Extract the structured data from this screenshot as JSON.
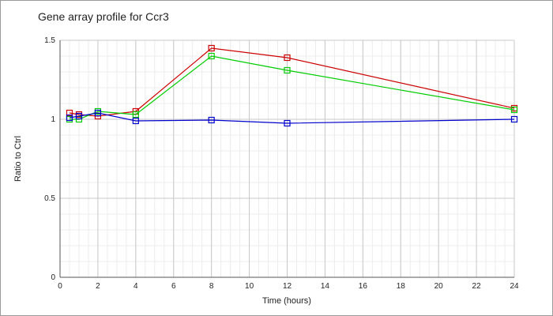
{
  "chart_data": {
    "type": "line",
    "title": "Gene array profile for Ccr3",
    "xlabel": "Time (hours)",
    "ylabel": "Ratio to Ctrl",
    "xlim": [
      0,
      24
    ],
    "ylim": [
      0,
      1.5
    ],
    "x_ticks": [
      0,
      2,
      4,
      6,
      8,
      10,
      12,
      14,
      16,
      18,
      20,
      22,
      24
    ],
    "y_ticks": [
      0,
      0.5,
      1,
      1.5
    ],
    "x_tick_labels": [
      "0",
      "2",
      "4",
      "6",
      "8",
      "10",
      "12",
      "14",
      "16",
      "18",
      "20",
      "22",
      "24"
    ],
    "y_tick_labels": [
      "0",
      "0.5",
      "1",
      "1.5"
    ],
    "grid": true,
    "legend": "none",
    "series": [
      {
        "color": "#cc0000",
        "x": [
          0.5,
          1,
          2,
          4,
          8,
          12,
          24
        ],
        "y": [
          1.04,
          1.03,
          1.02,
          1.05,
          1.45,
          1.39,
          1.07
        ]
      },
      {
        "color": "#00cc00",
        "x": [
          0.5,
          1,
          2,
          4,
          8,
          12,
          24
        ],
        "y": [
          1.0,
          1.0,
          1.05,
          1.03,
          1.4,
          1.31,
          1.06
        ]
      },
      {
        "color": "#0000cc",
        "x": [
          0.5,
          1,
          2,
          4,
          8,
          12,
          24
        ],
        "y": [
          1.01,
          1.02,
          1.04,
          0.99,
          0.995,
          0.975,
          1.0
        ]
      }
    ]
  }
}
